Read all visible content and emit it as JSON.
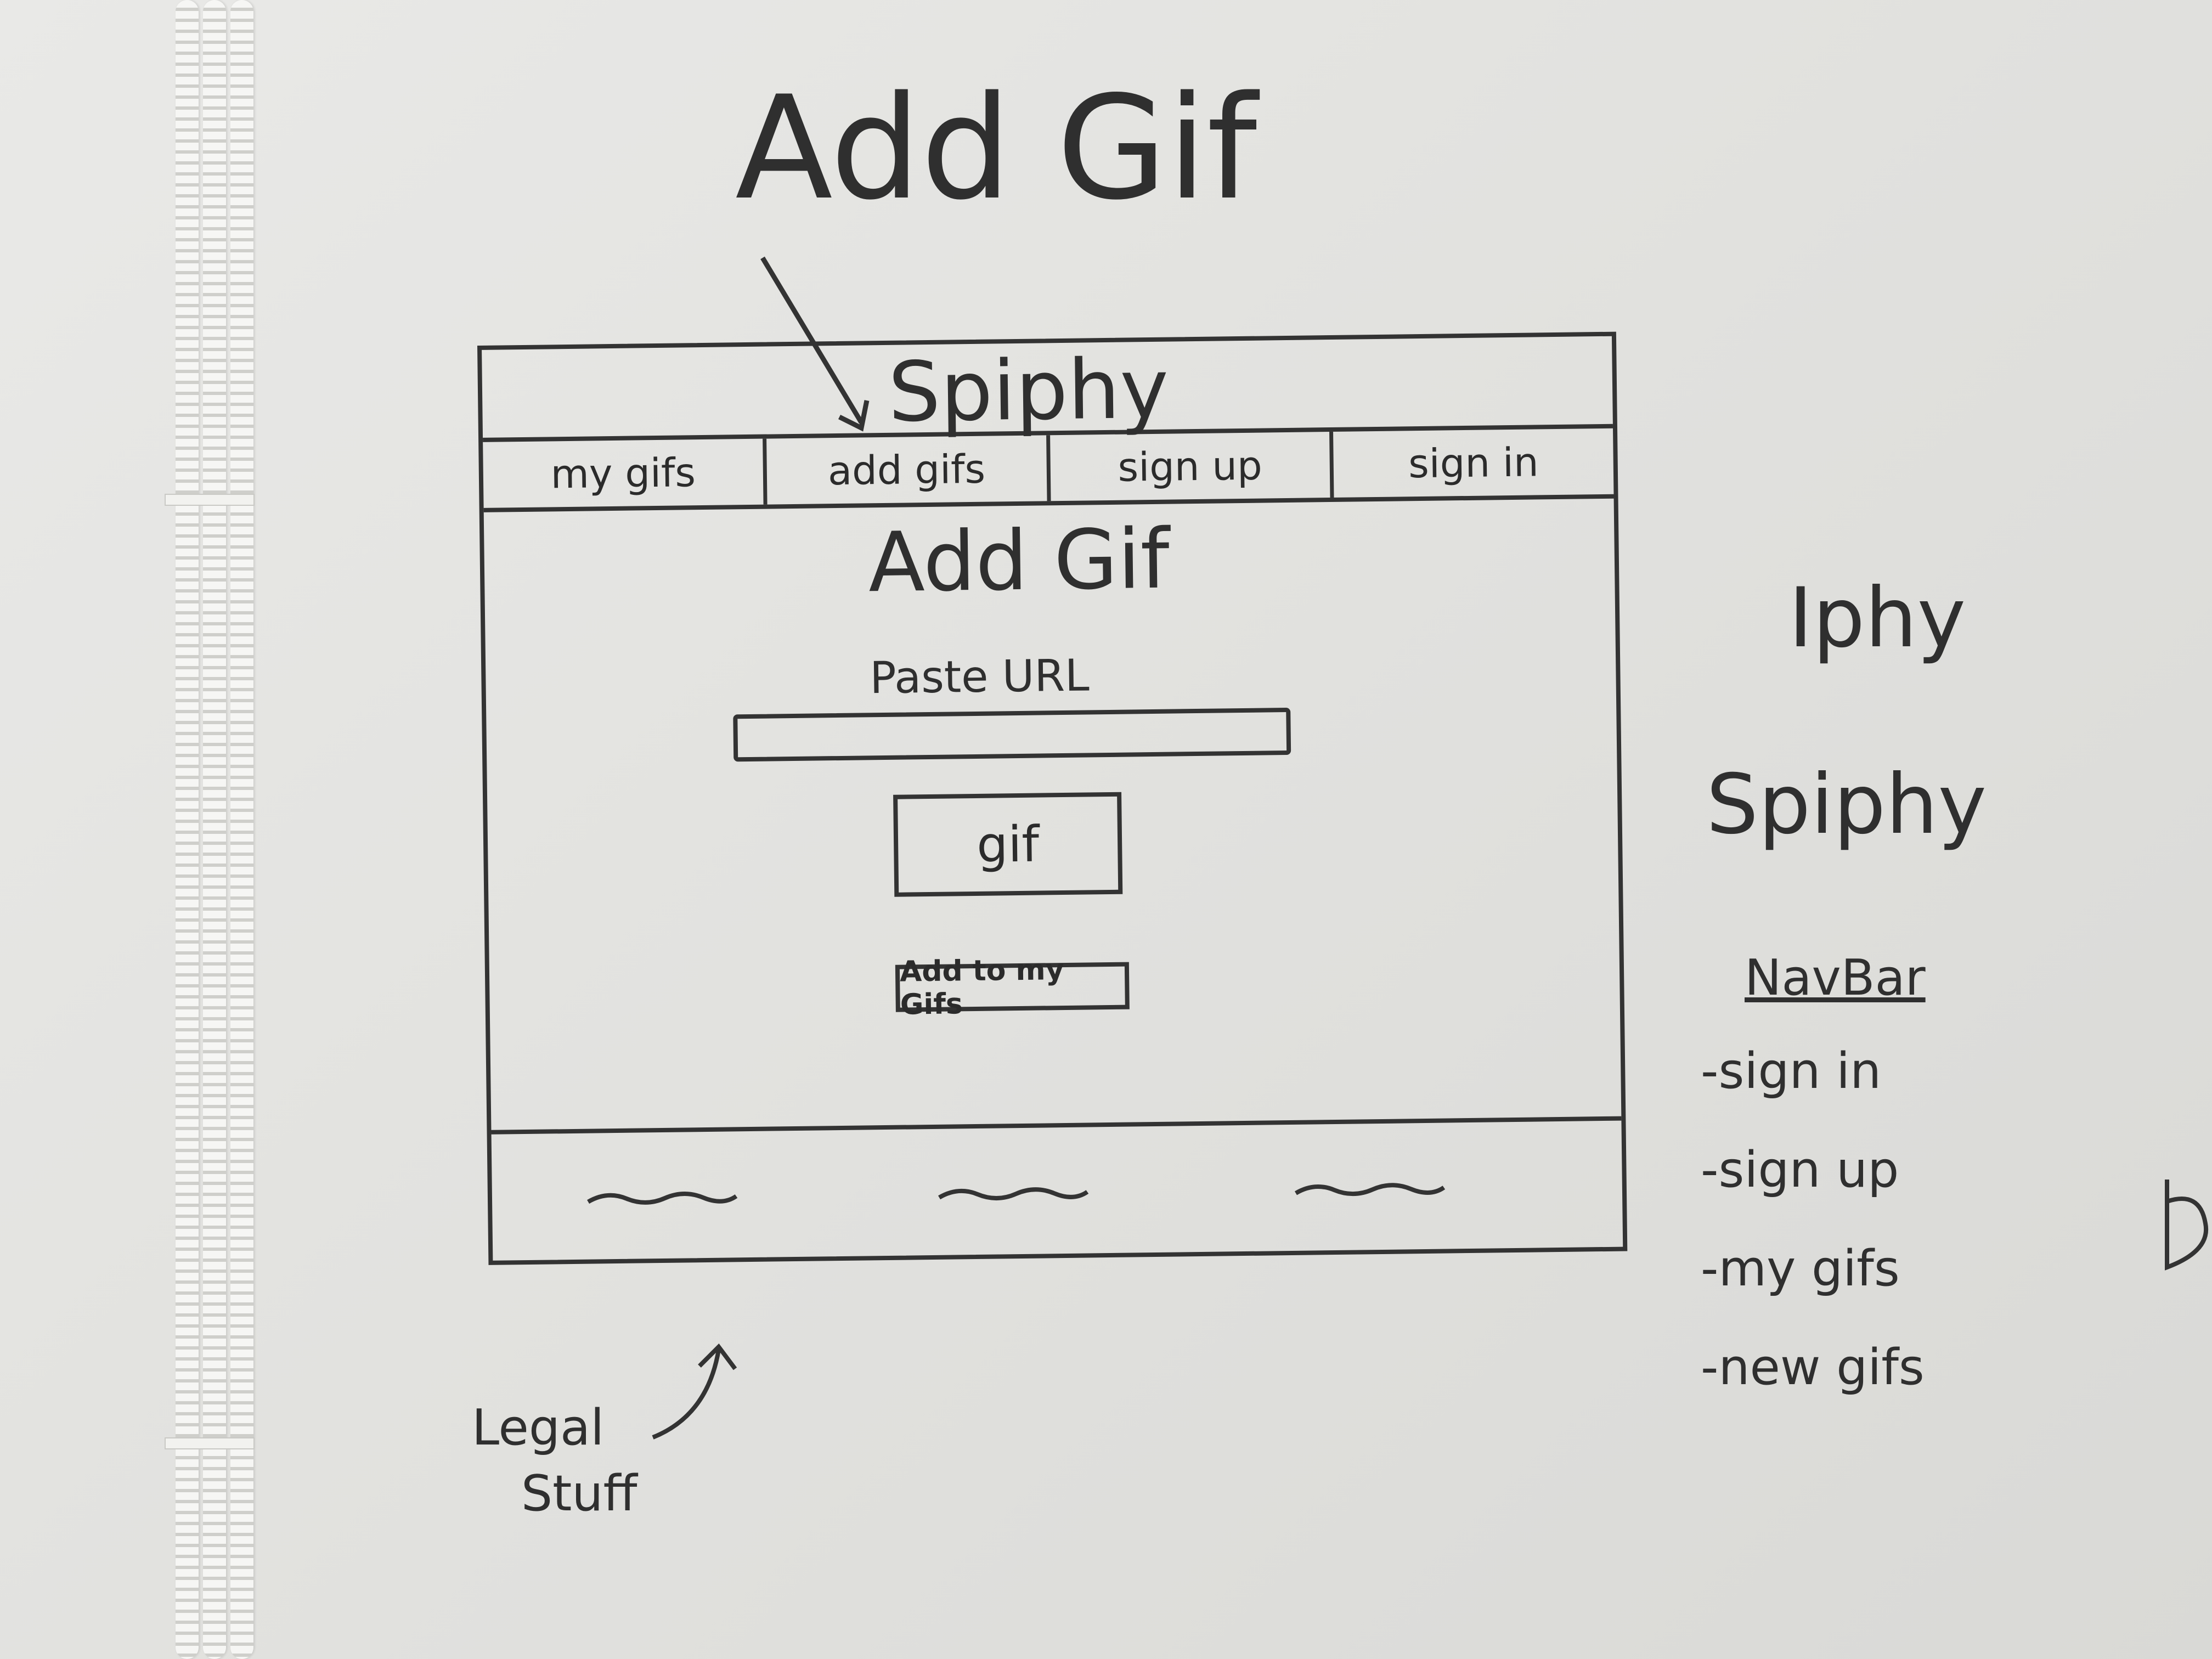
{
  "heading": "Add Gif",
  "wireframe": {
    "brand": "Spiphy",
    "nav": [
      "my gifs",
      "add gifs",
      "sign up",
      "sign in"
    ],
    "page_title": "Add Gif",
    "paste_label": "Paste URL",
    "url_value": "",
    "gif_button": "gif",
    "add_button": "Add to my Gifs"
  },
  "notes": {
    "legal": "Legal",
    "stuff": "Stuff",
    "alt1": "Iphy",
    "alt2": "Spiphy",
    "navbar_title": "NavBar",
    "navbar_items": [
      "-sign in",
      "-sign up",
      "-my gifs",
      "-new gifs"
    ]
  }
}
